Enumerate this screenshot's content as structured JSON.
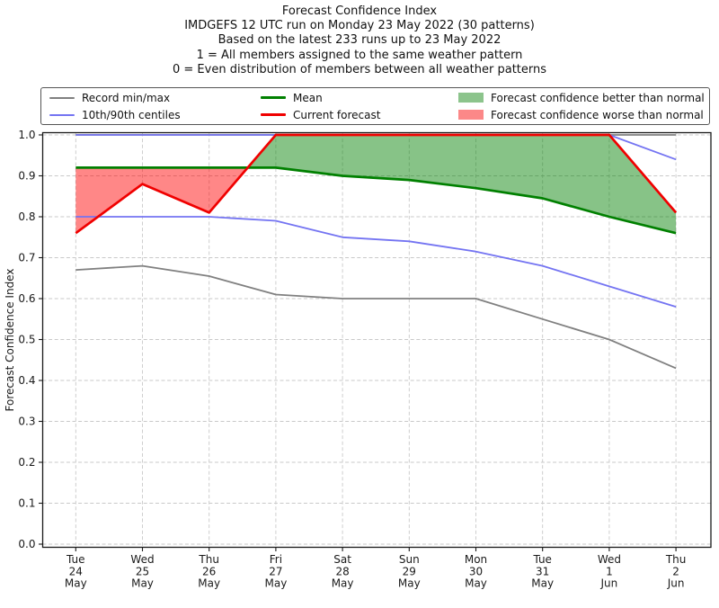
{
  "title_lines": [
    "Forecast Confidence Index",
    "IMDGEFS 12 UTC run on Monday 23 May 2022 (30 patterns)",
    "Based on the latest 233 runs up to 23 May 2022",
    "1 = All members assigned to the same weather pattern",
    "0 = Even distribution of members between all weather patterns"
  ],
  "legend": {
    "items": [
      {
        "label": "Record min/max",
        "swatch": "line",
        "color": "#808080",
        "lw": 2
      },
      {
        "label": "10th/90th centiles",
        "swatch": "line",
        "color": "#7474f2",
        "lw": 2
      },
      {
        "label": "Mean",
        "swatch": "line",
        "color": "#008000",
        "lw": 3
      },
      {
        "label": "Current forecast",
        "swatch": "line",
        "color": "#f00000",
        "lw": 3
      },
      {
        "label": "Forecast confidence better than normal",
        "swatch": "patch",
        "color": "#8cc48c"
      },
      {
        "label": "Forecast confidence worse than normal",
        "swatch": "patch",
        "color": "#fc8888"
      }
    ]
  },
  "chart_data": {
    "type": "line",
    "title": "Forecast Confidence Index",
    "xlabel": "",
    "ylabel": "Forecast Confidence Index",
    "ylim": [
      0.0,
      1.0
    ],
    "grid": true,
    "legend_position": "top",
    "yticks": [
      {
        "value": 0.0,
        "label": "0.0"
      },
      {
        "value": 0.1,
        "label": "0.1"
      },
      {
        "value": 0.2,
        "label": "0.2"
      },
      {
        "value": 0.3,
        "label": "0.3"
      },
      {
        "value": 0.4,
        "label": "0.4"
      },
      {
        "value": 0.5,
        "label": "0.5"
      },
      {
        "value": 0.6,
        "label": "0.6"
      },
      {
        "value": 0.7,
        "label": "0.7"
      },
      {
        "value": 0.8,
        "label": "0.8"
      },
      {
        "value": 0.9,
        "label": "0.9"
      },
      {
        "value": 1.0,
        "label": "1.0"
      }
    ],
    "categories": [
      [
        "Tue",
        "24",
        "May"
      ],
      [
        "Wed",
        "25",
        "May"
      ],
      [
        "Thu",
        "26",
        "May"
      ],
      [
        "Fri",
        "27",
        "May"
      ],
      [
        "Sat",
        "28",
        "May"
      ],
      [
        "Sun",
        "29",
        "May"
      ],
      [
        "Mon",
        "30",
        "May"
      ],
      [
        "Tue",
        "31",
        "May"
      ],
      [
        "Wed",
        "1",
        "Jun"
      ],
      [
        "Thu",
        "2",
        "Jun"
      ]
    ],
    "series": [
      {
        "name": "Record max",
        "color": "#808080",
        "width": 1.8,
        "values": [
          1.0,
          1.0,
          1.0,
          1.0,
          1.0,
          1.0,
          1.0,
          1.0,
          1.0,
          1.0
        ]
      },
      {
        "name": "Record min",
        "color": "#808080",
        "width": 1.8,
        "values": [
          0.67,
          0.68,
          0.655,
          0.61,
          0.6,
          0.6,
          0.6,
          0.55,
          0.5,
          0.43
        ]
      },
      {
        "name": "90th centile",
        "color": "#7474f2",
        "width": 1.8,
        "values": [
          1.0,
          1.0,
          1.0,
          1.0,
          1.0,
          1.0,
          1.0,
          1.0,
          1.0,
          0.94
        ]
      },
      {
        "name": "10th centile",
        "color": "#7474f2",
        "width": 1.8,
        "values": [
          0.8,
          0.8,
          0.8,
          0.79,
          0.75,
          0.74,
          0.715,
          0.68,
          0.63,
          0.58
        ]
      },
      {
        "name": "Mean",
        "color": "#008000",
        "width": 2.7,
        "values": [
          0.92,
          0.92,
          0.92,
          0.92,
          0.9,
          0.89,
          0.87,
          0.845,
          0.8,
          0.76
        ]
      },
      {
        "name": "Current forecast",
        "color": "#f00000",
        "width": 2.7,
        "values": [
          0.76,
          0.88,
          0.81,
          1.0,
          1.0,
          1.0,
          1.0,
          1.0,
          1.0,
          0.81
        ]
      }
    ],
    "fills": [
      {
        "label": "Forecast confidence better than normal",
        "upper": "Current forecast",
        "lower": "Mean",
        "mode": "above",
        "color": "#008000",
        "alpha": 0.47
      },
      {
        "label": "Forecast confidence worse than normal",
        "upper": "Current forecast",
        "lower": "Mean",
        "mode": "below",
        "color": "#ff0000",
        "alpha": 0.47
      }
    ]
  }
}
